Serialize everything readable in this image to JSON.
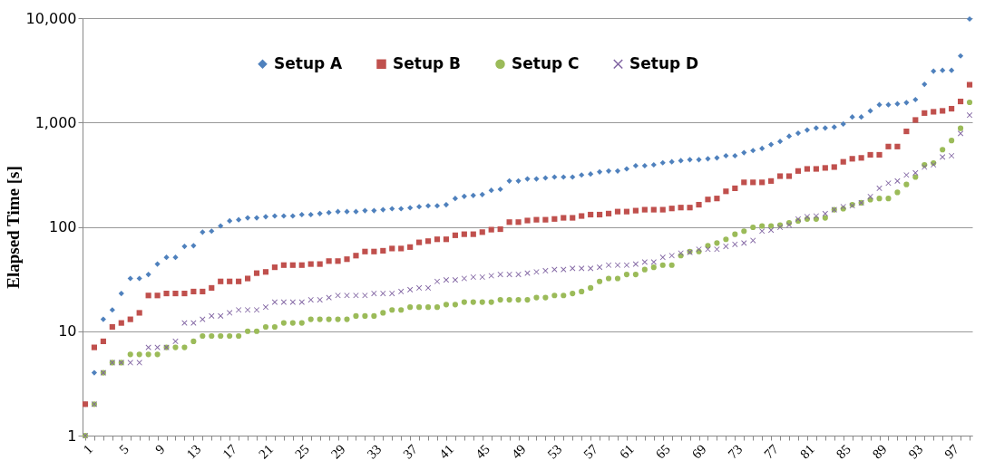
{
  "chart_data": {
    "type": "scatter",
    "ylabel": "Elapsed Time [s]",
    "log": "y",
    "grid": "y",
    "legend": "top",
    "categories": [
      "1",
      null,
      null,
      null,
      "5",
      null,
      null,
      null,
      "9",
      null,
      null,
      null,
      "13",
      null,
      null,
      null,
      "17",
      null,
      null,
      null,
      "21",
      null,
      null,
      null,
      "25",
      null,
      null,
      null,
      "29",
      null,
      null,
      null,
      "33",
      null,
      null,
      null,
      "37",
      null,
      null,
      null,
      "41",
      null,
      null,
      null,
      "45",
      null,
      null,
      null,
      "49",
      null,
      null,
      null,
      "53",
      null,
      null,
      null,
      "57",
      null,
      null,
      null,
      "61",
      null,
      null,
      null,
      "65",
      null,
      null,
      null,
      "69",
      null,
      null,
      null,
      "73",
      null,
      null,
      null,
      "77",
      null,
      null,
      null,
      "81",
      null,
      null,
      null,
      "85",
      null,
      null,
      null,
      "89",
      null,
      null,
      null,
      "93",
      null,
      null,
      null,
      "97",
      null,
      null
    ],
    "ylim": [
      1,
      10000
    ],
    "yticks": [
      1,
      10,
      100,
      {
        "value": 1000,
        "label": "1,000"
      },
      {
        "value": 10000,
        "label": "10,000"
      }
    ],
    "series": [
      {
        "name": "Setup A",
        "color": "#4f81bd",
        "marker": "diamond",
        "values": [
          2,
          4,
          13,
          16,
          23,
          32,
          32,
          35,
          44,
          51,
          51,
          65,
          66,
          89,
          91,
          102,
          114,
          117,
          122,
          122,
          125,
          127,
          127,
          127,
          131,
          131,
          134,
          137,
          140,
          140,
          140,
          143,
          143,
          146,
          149,
          149,
          152,
          156,
          159,
          159,
          163,
          187,
          196,
          200,
          204,
          224,
          229,
          275,
          275,
          288,
          288,
          294,
          300,
          300,
          300,
          314,
          321,
          336,
          343,
          343,
          359,
          385,
          385,
          393,
          411,
          420,
          431,
          440,
          440,
          449,
          458,
          480,
          480,
          514,
          538,
          564,
          615,
          658,
          738,
          789,
          846,
          885,
          885,
          904,
          967,
          1129,
          1129,
          1292,
          1478,
          1478,
          1508,
          1549,
          1657,
          2322,
          3100,
          3160,
          3160,
          4340,
          9800
        ]
      },
      {
        "name": "Setup B",
        "color": "#c0504d",
        "marker": "square",
        "values": [
          2,
          7,
          8,
          11,
          12,
          13,
          15,
          22,
          22,
          23,
          23,
          23,
          24,
          24,
          26,
          30,
          30,
          30,
          32,
          36,
          37,
          41,
          43,
          43,
          43,
          44,
          44,
          47,
          47,
          49,
          53,
          58,
          58,
          59,
          62,
          62,
          64,
          71,
          73,
          76,
          76,
          83,
          85,
          85,
          89,
          94,
          95,
          111,
          111,
          115,
          117,
          117,
          119,
          122,
          122,
          127,
          131,
          131,
          134,
          140,
          140,
          143,
          146,
          146,
          146,
          150,
          153,
          153,
          163,
          183,
          187,
          219,
          234,
          267,
          267,
          267,
          275,
          306,
          306,
          343,
          359,
          359,
          367,
          374,
          420,
          449,
          458,
          490,
          490,
          588,
          588,
          822,
          1057,
          1231,
          1266,
          1292,
          1355,
          1590,
          2300
        ]
      },
      {
        "name": "Setup C",
        "color": "#9bbb59",
        "marker": "circle",
        "values": [
          1,
          2,
          4,
          5,
          5,
          6,
          6,
          6,
          6,
          7,
          7,
          7,
          8,
          9,
          9,
          9,
          9,
          9,
          10,
          10,
          11,
          11,
          12,
          12,
          12,
          13,
          13,
          13,
          13,
          13,
          14,
          14,
          14,
          15,
          16,
          16,
          17,
          17,
          17,
          17,
          18,
          18,
          19,
          19,
          19,
          19,
          20,
          20,
          20,
          20,
          21,
          21,
          22,
          22,
          23,
          24,
          26,
          30,
          32,
          32,
          35,
          35,
          39,
          41,
          43,
          43,
          53,
          58,
          58,
          66,
          70,
          76,
          85,
          91,
          99,
          102,
          102,
          104,
          109,
          114,
          119,
          119,
          122,
          146,
          149,
          163,
          170,
          182,
          187,
          187,
          214,
          255,
          300,
          393,
          409,
          549,
          672,
          880,
          1560
        ]
      },
      {
        "name": "Setup D",
        "color": "#8064a2",
        "marker": "cross",
        "values": [
          1,
          2,
          4,
          5,
          5,
          5,
          5,
          7,
          7,
          7,
          8,
          12,
          12,
          13,
          14,
          14,
          15,
          16,
          16,
          16,
          17,
          19,
          19,
          19,
          19,
          20,
          20,
          21,
          22,
          22,
          22,
          22,
          23,
          23,
          23,
          24,
          25,
          26,
          26,
          30,
          31,
          31,
          32,
          33,
          33,
          34,
          35,
          35,
          35,
          36,
          37,
          38,
          39,
          39,
          40,
          40,
          40,
          41,
          43,
          43,
          43,
          44,
          46,
          46,
          51,
          53,
          56,
          57,
          61,
          61,
          61,
          65,
          68,
          70,
          74,
          91,
          93,
          99,
          104,
          119,
          125,
          127,
          134,
          146,
          156,
          159,
          170,
          195,
          234,
          262,
          275,
          314,
          329,
          374,
          393,
          467,
          480,
          785,
          1175
        ]
      }
    ]
  }
}
